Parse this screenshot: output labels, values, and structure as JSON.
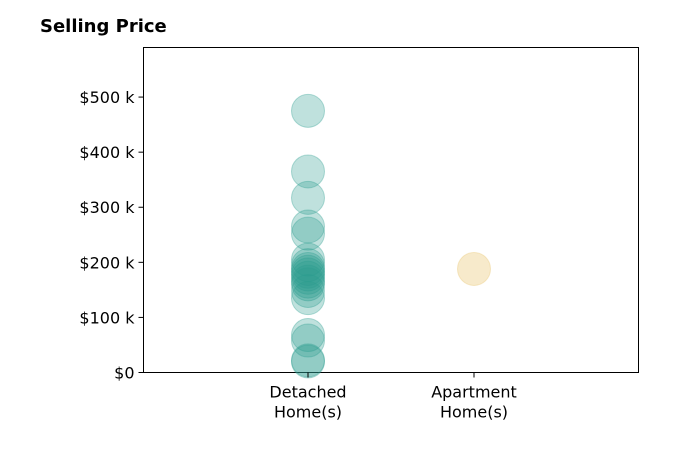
{
  "chart_data": {
    "type": "scatter",
    "title": "Selling Price",
    "xlabel": "",
    "ylabel": "",
    "categories": [
      "Detached Home(s)",
      "Apartment Home(s)"
    ],
    "category_label_lines": [
      [
        "Detached",
        "Home(s)"
      ],
      [
        "Apartment",
        "Home(s)"
      ]
    ],
    "ylim": [
      0,
      590000
    ],
    "yticks": [
      0,
      100000,
      200000,
      300000,
      400000,
      500000
    ],
    "ytick_labels": [
      "$0",
      "$100 k",
      "$200 k",
      "$300 k",
      "$400 k",
      "$500 k"
    ],
    "grid": false,
    "legend": "none",
    "series": [
      {
        "category": "Detached Home(s)",
        "color": "#2a9d8f",
        "values": [
          475000,
          365000,
          317000,
          265000,
          252000,
          205000,
          195000,
          188000,
          183000,
          178000,
          172000,
          165000,
          160000,
          148000,
          135000,
          68000,
          58000,
          22000,
          20000
        ]
      },
      {
        "category": "Apartment Home(s)",
        "color": "#e9c46a",
        "values": [
          188000
        ]
      }
    ]
  }
}
